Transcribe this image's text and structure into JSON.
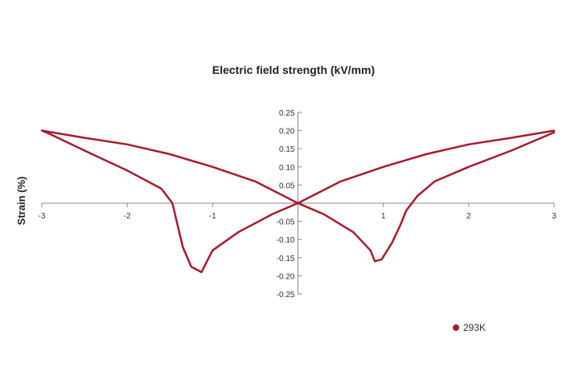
{
  "chart_data": {
    "type": "line",
    "title": "Electric field strength (kV/mm)",
    "xlabel": "",
    "ylabel": "Strain (%)",
    "xlim": [
      -3,
      3
    ],
    "ylim": [
      -0.25,
      0.25
    ],
    "x_ticks": [
      "-3",
      "-2",
      "-1",
      "1",
      "2",
      "3"
    ],
    "x_tick_values": [
      -3,
      -2,
      -1,
      1,
      2,
      3
    ],
    "y_ticks": [
      "0.25",
      "0.20",
      "0.15",
      "0.10",
      "0.05",
      "-0.05",
      "-0.10",
      "-0.15",
      "-0.20",
      "-0.25"
    ],
    "y_tick_values": [
      0.25,
      0.2,
      0.15,
      0.1,
      0.05,
      -0.05,
      -0.1,
      -0.15,
      -0.2,
      -0.25
    ],
    "grid": false,
    "legend_position": "bottom-right",
    "series": [
      {
        "name": "293K",
        "color": "#a61c2e",
        "points": [
          [
            3.0,
            0.2
          ],
          [
            2.5,
            0.18
          ],
          [
            2.0,
            0.162
          ],
          [
            1.5,
            0.135
          ],
          [
            1.0,
            0.1
          ],
          [
            0.5,
            0.06
          ],
          [
            0.0,
            0.0
          ],
          [
            -0.3,
            -0.03
          ],
          [
            -0.7,
            -0.08
          ],
          [
            -1.0,
            -0.13
          ],
          [
            -1.13,
            -0.19
          ],
          [
            -1.25,
            -0.175
          ],
          [
            -1.35,
            -0.12
          ],
          [
            -1.42,
            -0.05
          ],
          [
            -1.47,
            0.0
          ],
          [
            -1.6,
            0.04
          ],
          [
            -2.0,
            0.09
          ],
          [
            -2.5,
            0.145
          ],
          [
            -2.9,
            0.19
          ],
          [
            -3.0,
            0.2
          ],
          [
            -2.5,
            0.18
          ],
          [
            -2.0,
            0.162
          ],
          [
            -1.5,
            0.135
          ],
          [
            -1.0,
            0.1
          ],
          [
            -0.5,
            0.06
          ],
          [
            0.0,
            0.0
          ],
          [
            0.3,
            -0.03
          ],
          [
            0.65,
            -0.08
          ],
          [
            0.85,
            -0.13
          ],
          [
            0.9,
            -0.16
          ],
          [
            0.98,
            -0.155
          ],
          [
            1.1,
            -0.11
          ],
          [
            1.2,
            -0.06
          ],
          [
            1.27,
            -0.02
          ],
          [
            1.4,
            0.02
          ],
          [
            1.6,
            0.06
          ],
          [
            2.0,
            0.1
          ],
          [
            2.5,
            0.145
          ],
          [
            3.0,
            0.195
          ]
        ]
      }
    ]
  }
}
